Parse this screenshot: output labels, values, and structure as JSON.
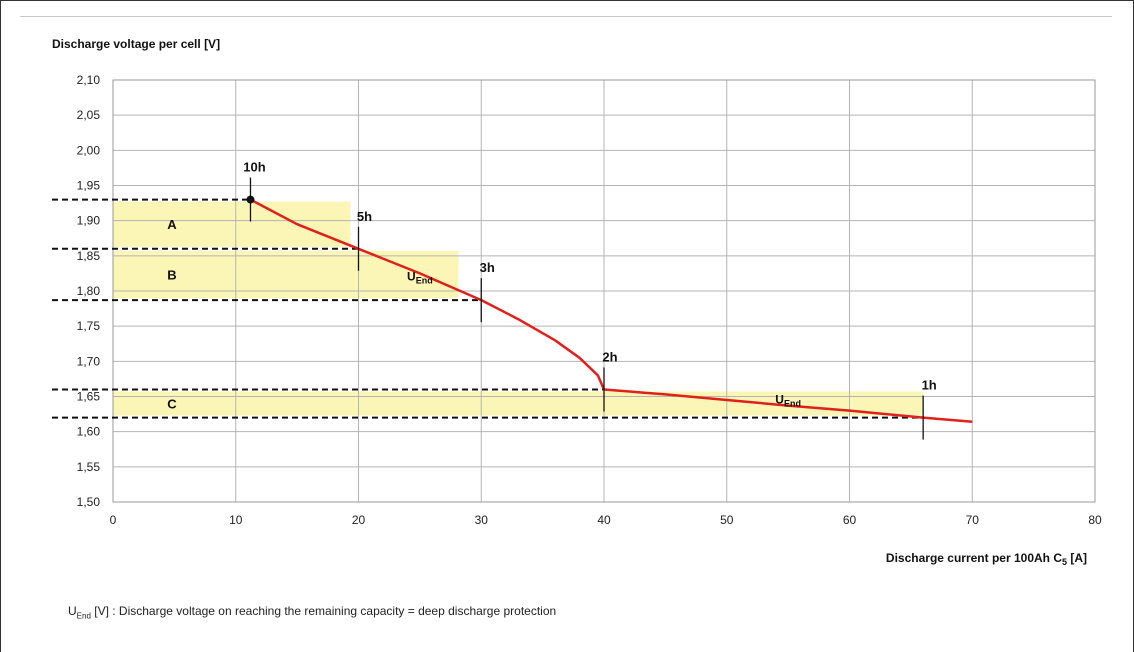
{
  "chart_data": {
    "type": "line",
    "ylabel": "Discharge voltage per cell  [V]",
    "xlabel_main": "Discharge current per 100Ah C",
    "xlabel_sub": "5",
    "xlabel_tail": " [A]",
    "xlim": [
      0,
      80
    ],
    "ylim": [
      1.5,
      2.1
    ],
    "x_ticks": [
      "0",
      "10",
      "20",
      "30",
      "40",
      "50",
      "60",
      "70",
      "80"
    ],
    "y_ticks": [
      "1,50",
      "1,55",
      "1,60",
      "1,65",
      "1,70",
      "1,75",
      "1,80",
      "1,85",
      "1,90",
      "1,95",
      "2,00",
      "2,05",
      "2,10"
    ],
    "grid": true,
    "colors": {
      "curve": "#e0201b",
      "band": "#fbf6b6",
      "grid": "#b4b4b4",
      "dash": "#111111"
    },
    "series": [
      {
        "x": [
          11.2,
          15,
          20,
          25,
          30,
          33,
          36,
          38,
          39.5,
          40,
          45,
          50,
          55,
          60,
          66,
          70
        ],
        "y": [
          1.93,
          1.895,
          1.86,
          1.825,
          1.787,
          1.76,
          1.73,
          1.705,
          1.68,
          1.66,
          1.653,
          1.645,
          1.637,
          1.63,
          1.62,
          1.614
        ]
      }
    ],
    "points": [
      {
        "label": "10h",
        "x": 11.2,
        "y": 1.93
      },
      {
        "label": "5h",
        "x": 20,
        "y": 1.86
      },
      {
        "label": "3h",
        "x": 30,
        "y": 1.787
      },
      {
        "label": "2h",
        "x": 40,
        "y": 1.66
      },
      {
        "label": "1h",
        "x": 66,
        "y": 1.62
      }
    ],
    "bands": [
      {
        "label": "A",
        "y_from": 1.86,
        "y_to": 1.93
      },
      {
        "label": "B",
        "y_from": 1.787,
        "y_to": 1.86
      },
      {
        "label": "C",
        "y_from": 1.62,
        "y_to": 1.66
      }
    ],
    "dashed_levels": [
      1.93,
      1.86,
      1.787,
      1.66,
      1.62
    ],
    "annotations": [
      {
        "main": "U",
        "sub": "End",
        "x": 25,
        "y": 1.815
      },
      {
        "main": "U",
        "sub": "End",
        "x": 55,
        "y": 1.64
      }
    ]
  },
  "footnote": {
    "main": "U",
    "sub": "End",
    "text": " [V]  : Discharge voltage on reaching the remaining capacity = deep discharge protection"
  }
}
